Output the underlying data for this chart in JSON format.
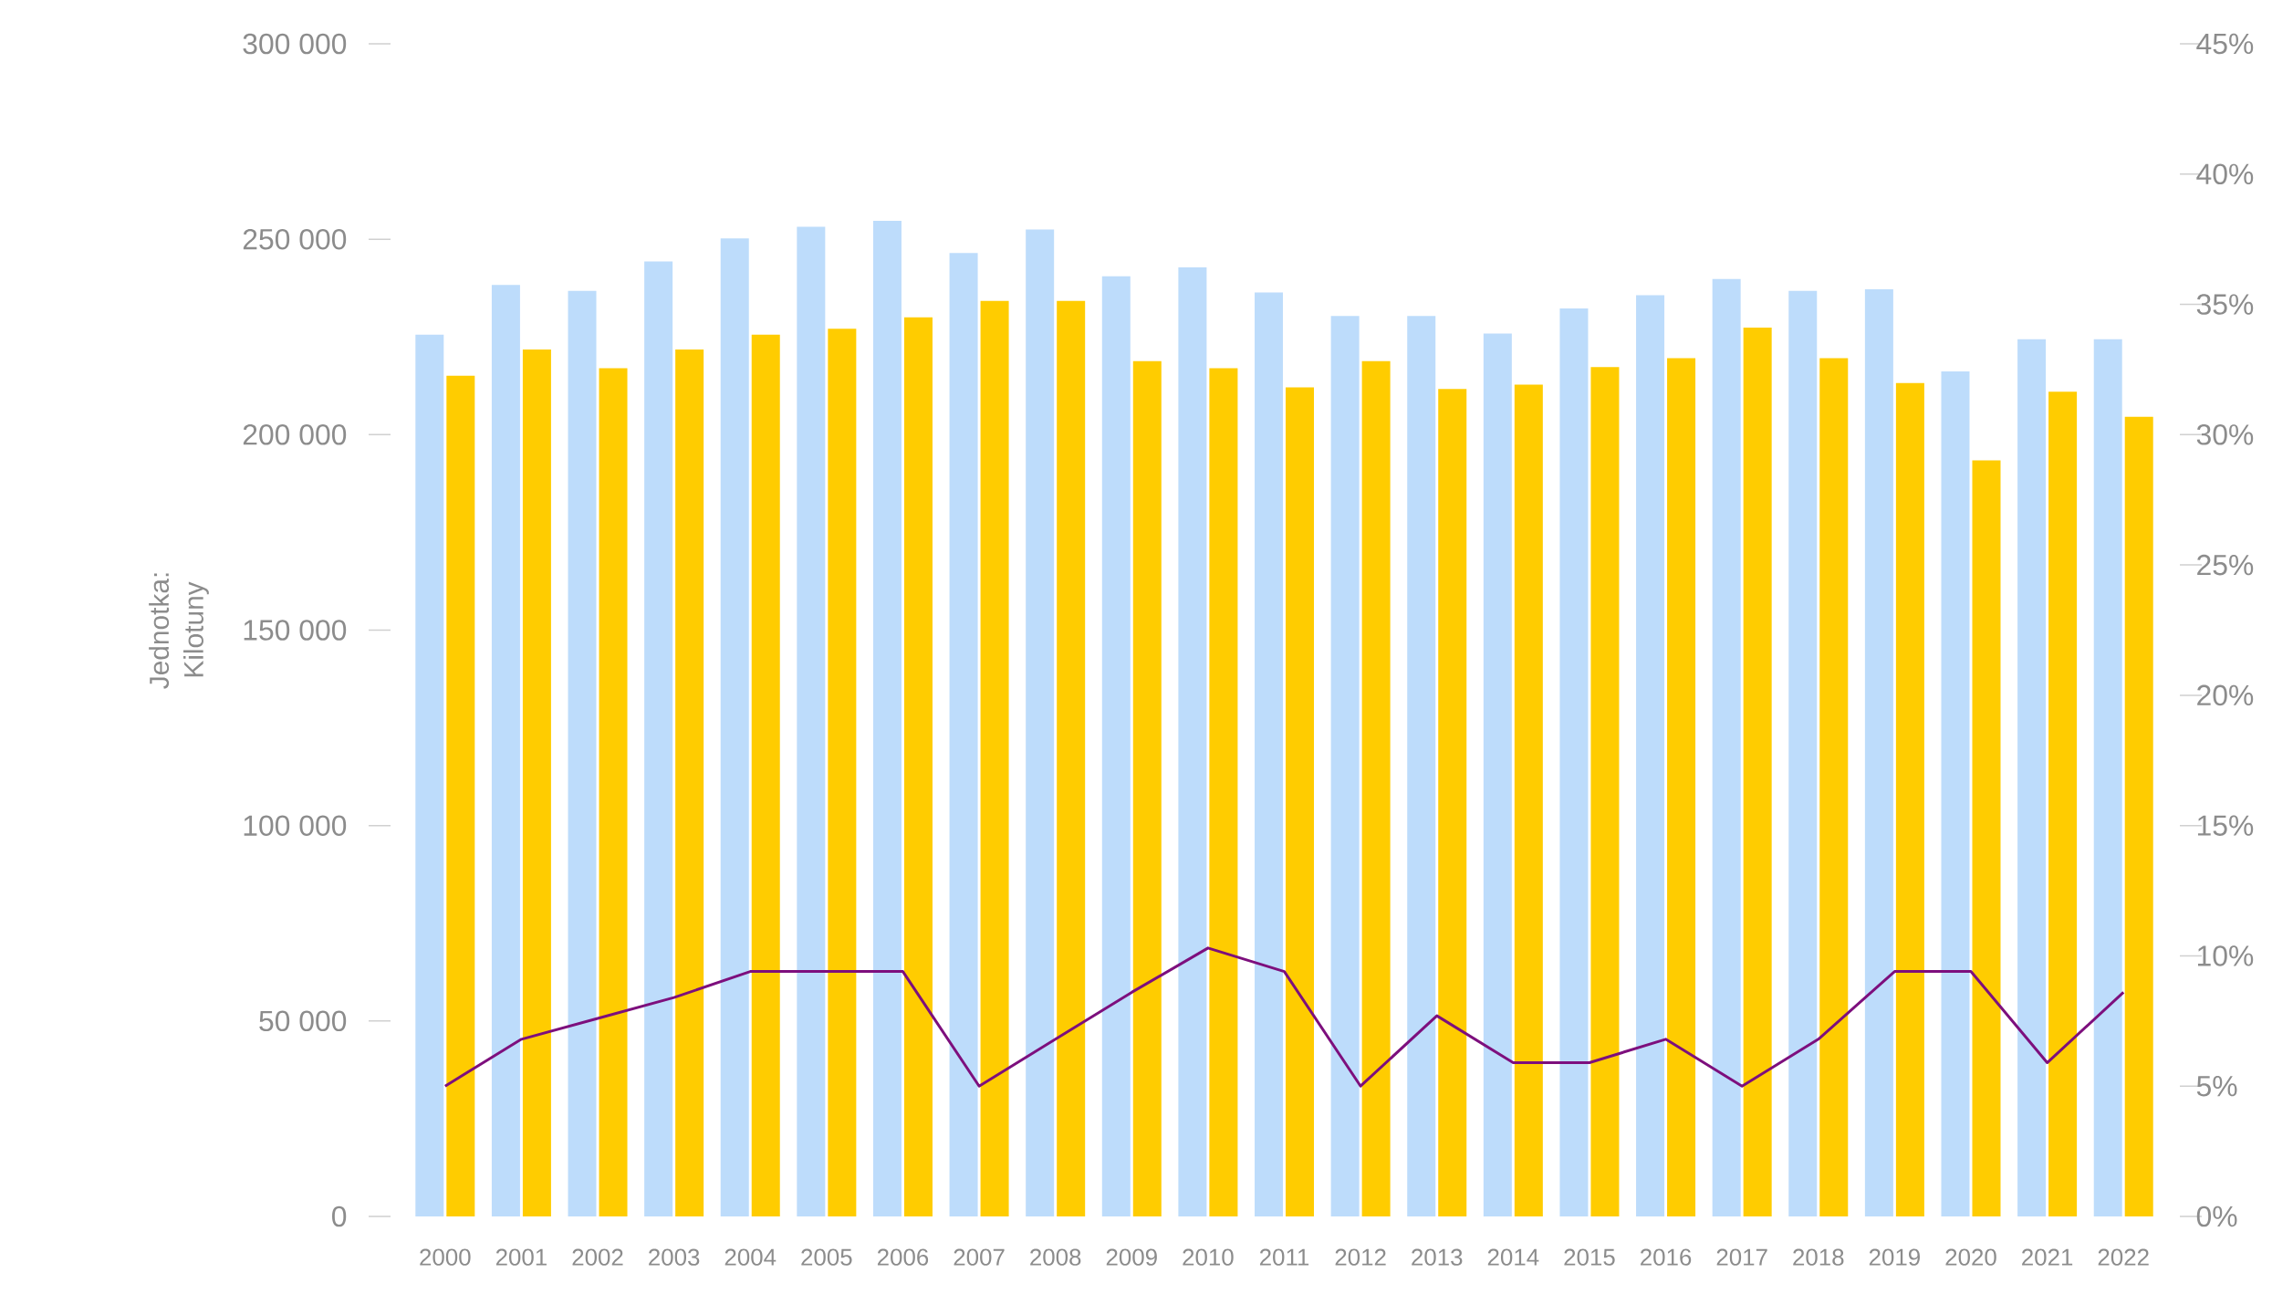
{
  "chart_data": {
    "type": "bar",
    "ylabel": "Jednotka: Kilotuny",
    "categories": [
      "2000",
      "2001",
      "2002",
      "2003",
      "2004",
      "2005",
      "2006",
      "2007",
      "2008",
      "2009",
      "2010",
      "2011",
      "2012",
      "2013",
      "2014",
      "2015",
      "2016",
      "2017",
      "2018",
      "2019",
      "2020",
      "2021",
      "2022"
    ],
    "series": [
      {
        "color": "#bddcfb",
        "values": [
          225600,
          238300,
          236800,
          244300,
          250200,
          253200,
          254700,
          246500,
          252500,
          240500,
          242800,
          236400,
          230400,
          230400,
          225900,
          232300,
          235700,
          239800,
          236800,
          237200,
          216200,
          224400,
          224400
        ]
      },
      {
        "color": "#ffcc00",
        "values": [
          215100,
          221800,
          217000,
          221800,
          225600,
          227100,
          230000,
          234200,
          234200,
          218800,
          217000,
          212100,
          218800,
          211700,
          212800,
          217300,
          219600,
          227400,
          219600,
          213200,
          193400,
          211000,
          204600
        ]
      },
      {
        "type": "line",
        "axis": "y2",
        "color": "#7d0f7d",
        "values": [
          5.0,
          6.8,
          7.6,
          8.4,
          9.4,
          9.4,
          9.4,
          5.0,
          6.8,
          8.6,
          10.3,
          9.4,
          5.0,
          7.7,
          5.9,
          5.9,
          6.8,
          5.0,
          6.8,
          9.4,
          9.4,
          5.9,
          8.6
        ]
      }
    ],
    "ylim": [
      0,
      300000
    ],
    "yticks": [
      0,
      {
        "value": 50000,
        "label": "50 000"
      },
      {
        "value": 100000,
        "label": "100 000"
      },
      {
        "value": 150000,
        "label": "150 000"
      },
      {
        "value": 200000,
        "label": "200 000"
      },
      {
        "value": 250000,
        "label": "250 000"
      },
      {
        "value": 300000,
        "label": "300 000"
      }
    ],
    "y2lim": [
      0,
      45
    ],
    "y2ticks": [
      {
        "value": 0,
        "label": "0%"
      },
      {
        "value": 5,
        "label": "5%"
      },
      {
        "value": 10,
        "label": "10%"
      },
      {
        "value": 15,
        "label": "15%"
      },
      {
        "value": 20,
        "label": "20%"
      },
      {
        "value": 25,
        "label": "25%"
      },
      {
        "value": 30,
        "label": "30%"
      },
      {
        "value": 35,
        "label": "35%"
      },
      {
        "value": 40,
        "label": "40%"
      },
      {
        "value": 45,
        "label": "45%"
      }
    ]
  }
}
